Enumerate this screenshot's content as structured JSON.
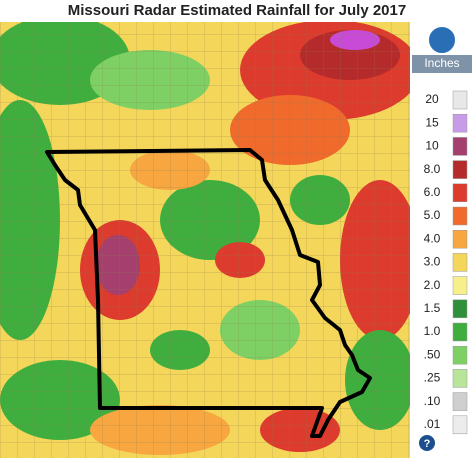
{
  "title": "Missouri Radar Estimated Rainfall for July 2017",
  "legend": {
    "unit": "Inches",
    "help": "?",
    "entries": [
      {
        "label": "20",
        "color": "#e8e8e8"
      },
      {
        "label": "15",
        "color": "#c89be8"
      },
      {
        "label": "10",
        "color": "#a43f6e"
      },
      {
        "label": "8.0",
        "color": "#b52a2a"
      },
      {
        "label": "6.0",
        "color": "#dc3b2e"
      },
      {
        "label": "5.0",
        "color": "#f06a2c"
      },
      {
        "label": "4.0",
        "color": "#f7a640"
      },
      {
        "label": "3.0",
        "color": "#f4d75a"
      },
      {
        "label": "2.0",
        "color": "#f6ef8a"
      },
      {
        "label": "1.5",
        "color": "#2f8f3a"
      },
      {
        "label": "1.0",
        "color": "#3fae3f"
      },
      {
        "label": ".50",
        "color": "#7fd064"
      },
      {
        "label": ".25",
        "color": "#b9e59a"
      },
      {
        "label": ".10",
        "color": "#cfcfcf"
      },
      {
        "label": ".01",
        "color": "#ececec"
      }
    ]
  }
}
